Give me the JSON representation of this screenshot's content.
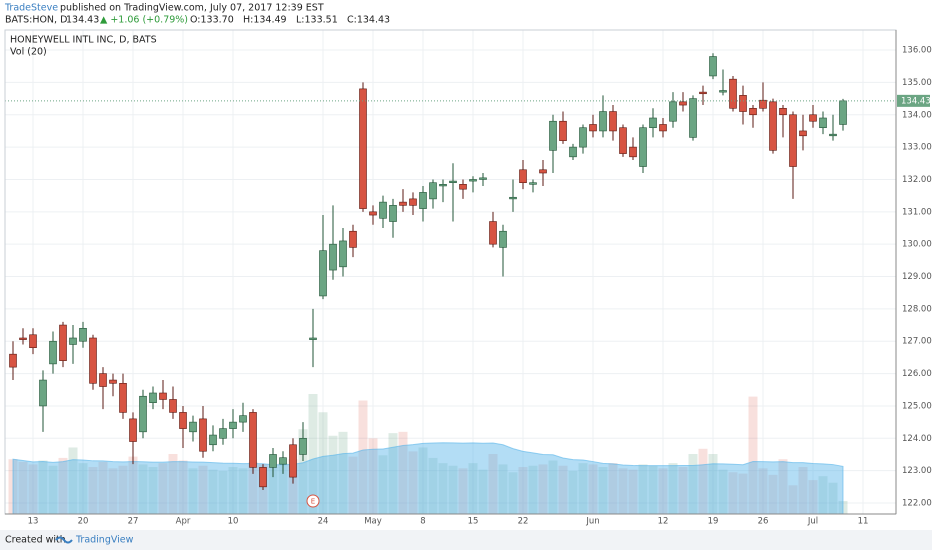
{
  "header": {
    "author": "TradeSteve",
    "published": "published on TradingView.com, July 07, 2017 12:39 EST",
    "symbol": "BATS:HON, D",
    "last": "134.43",
    "change": "▲ +1.06 (+0.79%)",
    "ohlc_open": "O:133.70",
    "ohlc_high": "H:134.49",
    "ohlc_low": "L:133.51",
    "ohlc_close": "C:134.43"
  },
  "footer": {
    "created": "Created with",
    "brand": "TradingView"
  },
  "chart_data": {
    "type": "candlestick",
    "title": "HONEYWELL INTL INC, D, BATS",
    "volume_label": "Vol (20)",
    "event_marker": {
      "index": 30,
      "label": "E"
    },
    "open": [
      126.6,
      127.1,
      127.2,
      125.0,
      126.3,
      127.5,
      126.9,
      127.0,
      127.1,
      126.0,
      125.8,
      125.7,
      124.6,
      124.2,
      125.1,
      125.4,
      125.2,
      124.8,
      124.2,
      124.6,
      123.8,
      124.0,
      124.3,
      124.5,
      124.8,
      123.1,
      123.1,
      123.2,
      123.8,
      123.5,
      127.05,
      128.4,
      129.2,
      129.3,
      130.4,
      134.8,
      131.0,
      130.8,
      130.7,
      131.3,
      131.4,
      131.1,
      131.4,
      131.8,
      131.9,
      131.85,
      131.95,
      132.0,
      130.7,
      129.9,
      131.4,
      132.3,
      131.85,
      132.3,
      132.9,
      133.8,
      132.7,
      133.0,
      133.7,
      133.5,
      134.1,
      133.6,
      133.0,
      132.4,
      133.6,
      133.7,
      133.8,
      134.4,
      133.3,
      134.7,
      135.2,
      134.7,
      135.1,
      134.6,
      134.2,
      134.45,
      134.4,
      134.2,
      134.0,
      133.5,
      134.0,
      133.6,
      133.35,
      133.7
    ],
    "high": [
      127.0,
      127.4,
      127.4,
      126.1,
      127.3,
      127.6,
      127.5,
      127.6,
      127.2,
      126.2,
      126.0,
      126.0,
      124.8,
      125.5,
      125.6,
      125.8,
      125.6,
      125.0,
      124.7,
      125.0,
      124.4,
      124.6,
      124.9,
      125.1,
      124.9,
      123.2,
      123.7,
      123.6,
      124.0,
      124.5,
      128.0,
      130.9,
      131.2,
      130.5,
      130.6,
      135.0,
      131.2,
      131.5,
      131.4,
      131.7,
      131.6,
      131.8,
      132.0,
      132.0,
      132.5,
      132.0,
      132.1,
      132.2,
      131.0,
      130.6,
      132.0,
      132.6,
      132.0,
      132.6,
      134.0,
      134.1,
      133.1,
      133.7,
      134.0,
      134.6,
      134.3,
      133.7,
      133.3,
      133.7,
      134.2,
      133.9,
      134.7,
      134.7,
      134.6,
      134.9,
      135.9,
      135.4,
      135.2,
      134.9,
      134.3,
      135.0,
      134.5,
      134.3,
      134.1,
      134.0,
      134.3,
      134.1,
      134.0,
      134.49
    ],
    "low": [
      125.8,
      126.9,
      126.6,
      124.2,
      126.0,
      126.2,
      126.3,
      126.8,
      125.5,
      124.9,
      125.3,
      124.6,
      123.2,
      124.0,
      124.9,
      124.9,
      124.6,
      123.7,
      123.9,
      123.4,
      123.6,
      123.8,
      124.0,
      124.2,
      122.9,
      122.4,
      122.8,
      122.9,
      122.6,
      123.3,
      126.2,
      128.3,
      128.9,
      129.0,
      129.6,
      131.0,
      130.6,
      130.5,
      130.2,
      131.0,
      130.9,
      130.7,
      131.1,
      131.3,
      130.7,
      131.4,
      131.6,
      131.8,
      129.9,
      129.0,
      131.0,
      131.7,
      131.6,
      131.8,
      132.2,
      133.1,
      132.6,
      132.8,
      133.3,
      133.3,
      133.2,
      132.7,
      132.6,
      132.2,
      133.3,
      133.3,
      133.6,
      134.1,
      133.2,
      134.3,
      135.1,
      134.6,
      134.1,
      133.7,
      133.6,
      134.1,
      132.8,
      133.3,
      131.4,
      132.9,
      133.6,
      133.4,
      133.2,
      133.51
    ],
    "close": [
      126.2,
      127.05,
      126.8,
      125.8,
      127.0,
      126.4,
      127.1,
      127.4,
      125.7,
      125.6,
      125.7,
      124.8,
      123.9,
      125.3,
      125.4,
      125.2,
      124.8,
      124.3,
      124.5,
      123.6,
      124.1,
      124.3,
      124.5,
      124.7,
      123.1,
      122.5,
      123.5,
      123.4,
      122.8,
      124.0,
      127.1,
      129.8,
      130.0,
      130.1,
      129.9,
      131.1,
      130.9,
      131.3,
      131.2,
      131.2,
      131.2,
      131.6,
      131.9,
      131.85,
      131.95,
      131.7,
      132.0,
      132.05,
      130.0,
      130.4,
      131.45,
      131.9,
      131.9,
      132.2,
      133.8,
      133.2,
      133.0,
      133.6,
      133.5,
      134.1,
      133.5,
      132.8,
      132.7,
      133.6,
      133.9,
      133.5,
      134.4,
      134.3,
      134.5,
      134.65,
      135.8,
      134.75,
      134.2,
      134.1,
      134.0,
      134.2,
      132.9,
      134.0,
      132.4,
      133.35,
      133.8,
      133.9,
      133.4,
      134.43
    ],
    "volume": [
      4.2,
      4.0,
      3.8,
      4.1,
      3.7,
      4.3,
      5.1,
      3.9,
      3.6,
      4.0,
      3.5,
      3.7,
      4.4,
      3.8,
      3.6,
      3.9,
      4.6,
      4.1,
      3.5,
      3.7,
      3.4,
      3.3,
      3.6,
      3.5,
      4.0,
      3.8,
      3.6,
      3.9,
      4.2,
      6.5,
      9.2,
      7.8,
      6.0,
      6.3,
      4.4,
      8.7,
      5.8,
      4.5,
      6.2,
      6.3,
      4.8,
      5.1,
      4.3,
      3.9,
      3.7,
      3.5,
      3.9,
      3.4,
      4.6,
      3.8,
      3.2,
      3.6,
      3.7,
      3.8,
      4.1,
      3.7,
      3.3,
      3.9,
      3.8,
      3.6,
      3.9,
      3.5,
      3.4,
      3.8,
      3.7,
      3.5,
      3.9,
      3.6,
      4.6,
      5.0,
      4.6,
      3.4,
      3.2,
      3.1,
      9.0,
      3.5,
      3.0,
      4.2,
      2.2,
      3.6,
      2.6,
      2.9,
      2.4,
      1.0
    ],
    "ma_period": 20,
    "up_color": "#6ba583",
    "down_color": "#d75442",
    "up_border": "#225437",
    "down_border": "#5b1a13",
    "ma_color": "#56b4e9",
    "ylim": [
      121.66,
      136.62
    ],
    "yticks": [
      {
        "value": 122,
        "label": "122.00"
      },
      {
        "value": 123,
        "label": "123.00"
      },
      {
        "value": 124,
        "label": "124.00"
      },
      {
        "value": 125,
        "label": "125.00"
      },
      {
        "value": 126,
        "label": "126.00"
      },
      {
        "value": 127,
        "label": "127.00"
      },
      {
        "value": 128,
        "label": "128.00"
      },
      {
        "value": 129,
        "label": "129.00"
      },
      {
        "value": 130,
        "label": "130.00"
      },
      {
        "value": 131,
        "label": "131.00"
      },
      {
        "value": 132,
        "label": "132.00"
      },
      {
        "value": 133,
        "label": "133.00"
      },
      {
        "value": 134,
        "label": "134.00"
      },
      {
        "value": 135,
        "label": "135.00"
      },
      {
        "value": 136,
        "label": "136.00"
      }
    ],
    "xticks": [
      {
        "value": 2,
        "label": "13"
      },
      {
        "value": 7,
        "label": "20"
      },
      {
        "value": 12,
        "label": "27"
      },
      {
        "value": 17,
        "label": "Apr"
      },
      {
        "value": 22,
        "label": "10"
      },
      {
        "value": 31,
        "label": "24"
      },
      {
        "value": 36,
        "label": "May"
      },
      {
        "value": 41,
        "label": "8"
      },
      {
        "value": 46,
        "label": "15"
      },
      {
        "value": 51,
        "label": "22"
      },
      {
        "value": 58,
        "label": "Jun"
      },
      {
        "value": 65,
        "label": "12"
      },
      {
        "value": 70,
        "label": "19"
      },
      {
        "value": 75,
        "label": "26"
      },
      {
        "value": 80,
        "label": "Jul"
      },
      {
        "value": 85,
        "label": "11"
      }
    ],
    "grid": true
  }
}
